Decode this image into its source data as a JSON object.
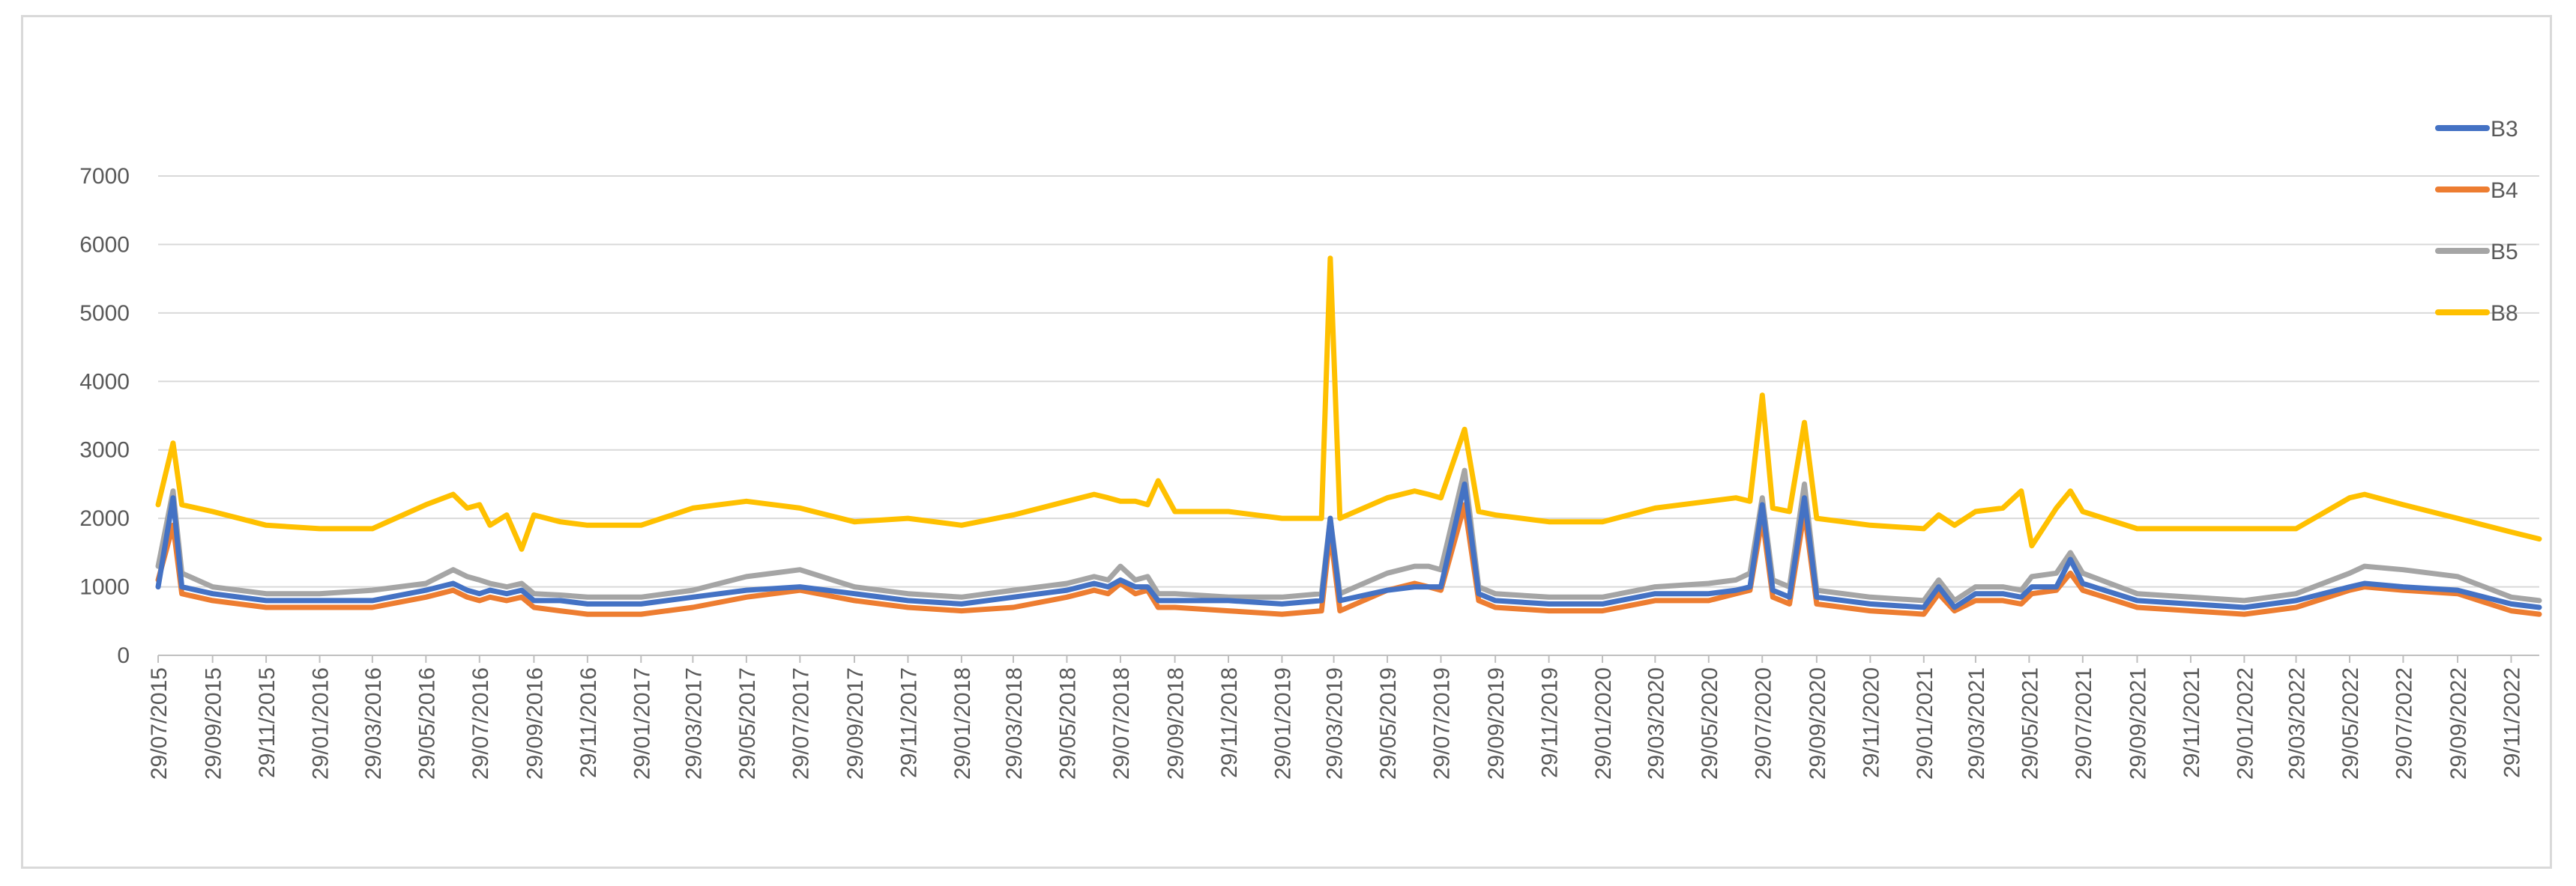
{
  "chart_data": {
    "type": "line",
    "title": "",
    "xlabel": "",
    "ylabel": "",
    "ylim": [
      0,
      7000
    ],
    "yticks": [
      0,
      1000,
      2000,
      3000,
      4000,
      5000,
      6000,
      7000
    ],
    "grid": true,
    "legend": "right",
    "x_ticks": [
      "29/07/2015",
      "29/09/2015",
      "29/11/2015",
      "29/01/2016",
      "29/03/2016",
      "29/05/2016",
      "29/07/2016",
      "29/09/2016",
      "29/11/2016",
      "29/01/2017",
      "29/03/2017",
      "29/05/2017",
      "29/07/2017",
      "29/09/2017",
      "29/11/2017",
      "29/01/2018",
      "29/03/2018",
      "29/05/2018",
      "29/07/2018",
      "29/09/2018",
      "29/11/2018",
      "29/01/2019",
      "29/03/2019",
      "29/05/2019",
      "29/07/2019",
      "29/09/2019",
      "29/11/2019",
      "29/01/2020",
      "29/03/2020",
      "29/05/2020",
      "29/07/2020",
      "29/09/2020",
      "29/11/2020",
      "29/01/2021",
      "29/03/2021",
      "29/05/2021",
      "29/07/2021",
      "29/09/2021",
      "29/11/2021",
      "29/01/2022",
      "29/03/2022",
      "29/05/2022",
      "29/07/2022",
      "29/09/2022",
      "29/11/2022"
    ],
    "x": [
      "29/07/2015",
      "15/08/2015",
      "25/08/2015",
      "29/09/2015",
      "29/11/2015",
      "29/01/2016",
      "29/03/2016",
      "29/05/2016",
      "29/06/2016",
      "15/07/2016",
      "29/07/2016",
      "10/08/2016",
      "29/08/2016",
      "15/09/2016",
      "29/09/2016",
      "29/10/2016",
      "29/11/2016",
      "29/01/2017",
      "29/03/2017",
      "29/05/2017",
      "29/07/2017",
      "29/09/2017",
      "29/11/2017",
      "29/01/2018",
      "29/03/2018",
      "29/05/2018",
      "29/06/2018",
      "15/07/2018",
      "29/07/2018",
      "15/08/2018",
      "29/08/2018",
      "10/09/2018",
      "29/09/2018",
      "29/11/2018",
      "29/01/2019",
      "15/03/2019",
      "25/03/2019",
      "05/04/2019",
      "29/05/2019",
      "29/06/2019",
      "15/07/2019",
      "29/07/2019",
      "25/08/2019",
      "10/09/2019",
      "29/09/2019",
      "29/11/2019",
      "29/01/2020",
      "29/03/2020",
      "29/05/2020",
      "29/06/2020",
      "15/07/2020",
      "29/07/2020",
      "10/08/2020",
      "29/08/2020",
      "15/09/2020",
      "29/09/2020",
      "29/11/2020",
      "29/01/2021",
      "15/02/2021",
      "05/03/2021",
      "29/03/2021",
      "29/04/2021",
      "20/05/2021",
      "01/06/2021",
      "29/06/2021",
      "15/07/2021",
      "29/07/2021",
      "29/09/2021",
      "29/11/2021",
      "29/01/2022",
      "29/03/2022",
      "29/05/2022",
      "15/06/2022",
      "29/07/2022",
      "29/09/2022",
      "29/11/2022",
      "31/12/2022"
    ],
    "series": [
      {
        "name": "B3",
        "color": "#4472c4",
        "values": [
          1000,
          2300,
          1000,
          900,
          800,
          800,
          800,
          950,
          1050,
          950,
          900,
          950,
          900,
          950,
          800,
          800,
          750,
          750,
          850,
          950,
          1000,
          900,
          800,
          750,
          850,
          950,
          1050,
          1000,
          1100,
          1000,
          1000,
          800,
          800,
          800,
          750,
          800,
          2000,
          800,
          950,
          1000,
          1000,
          1000,
          2500,
          900,
          800,
          750,
          750,
          900,
          900,
          950,
          1000,
          2200,
          950,
          850,
          2300,
          850,
          750,
          700,
          1000,
          700,
          900,
          900,
          850,
          1000,
          1000,
          1400,
          1050,
          800,
          750,
          700,
          800,
          1000,
          1050,
          1000,
          950,
          750,
          700
        ]
      },
      {
        "name": "B4",
        "color": "#ed7d31",
        "values": [
          1100,
          1900,
          900,
          800,
          700,
          700,
          700,
          850,
          950,
          850,
          800,
          850,
          800,
          850,
          700,
          650,
          600,
          600,
          700,
          850,
          950,
          800,
          700,
          650,
          700,
          850,
          950,
          900,
          1050,
          900,
          950,
          700,
          700,
          650,
          600,
          650,
          1800,
          650,
          950,
          1050,
          1000,
          950,
          2200,
          800,
          700,
          650,
          650,
          800,
          800,
          900,
          950,
          2000,
          850,
          750,
          2100,
          750,
          650,
          600,
          900,
          650,
          800,
          800,
          750,
          900,
          950,
          1200,
          950,
          700,
          650,
          600,
          700,
          950,
          1000,
          950,
          900,
          650,
          600
        ]
      },
      {
        "name": "B5",
        "color": "#a5a5a5",
        "values": [
          1300,
          2400,
          1200,
          1000,
          900,
          900,
          950,
          1050,
          1250,
          1150,
          1100,
          1050,
          1000,
          1050,
          900,
          880,
          850,
          850,
          950,
          1150,
          1250,
          1000,
          900,
          850,
          950,
          1050,
          1150,
          1100,
          1300,
          1100,
          1150,
          900,
          900,
          850,
          850,
          900,
          2000,
          900,
          1200,
          1300,
          1300,
          1250,
          2700,
          1000,
          900,
          850,
          850,
          1000,
          1050,
          1100,
          1200,
          2300,
          1100,
          1000,
          2500,
          950,
          850,
          800,
          1100,
          800,
          1000,
          1000,
          950,
          1150,
          1200,
          1500,
          1200,
          900,
          850,
          800,
          900,
          1200,
          1300,
          1250,
          1150,
          850,
          800
        ]
      },
      {
        "name": "B8",
        "color": "#ffc000",
        "values": [
          2200,
          3100,
          2200,
          2100,
          1900,
          1850,
          1850,
          2200,
          2350,
          2150,
          2200,
          1900,
          2050,
          1550,
          2050,
          1950,
          1900,
          1900,
          2150,
          2250,
          2150,
          1950,
          2000,
          1900,
          2050,
          2250,
          2350,
          2300,
          2250,
          2250,
          2200,
          2550,
          2100,
          2100,
          2000,
          2000,
          5800,
          2000,
          2300,
          2400,
          2350,
          2300,
          3300,
          2100,
          2050,
          1950,
          1950,
          2150,
          2250,
          2300,
          2250,
          3800,
          2150,
          2100,
          3400,
          2000,
          1900,
          1850,
          2050,
          1900,
          2100,
          2150,
          2400,
          1600,
          2150,
          2400,
          2100,
          1850,
          1850,
          1850,
          1850,
          2300,
          2350,
          2200,
          2000,
          1800,
          1700
        ]
      }
    ]
  }
}
